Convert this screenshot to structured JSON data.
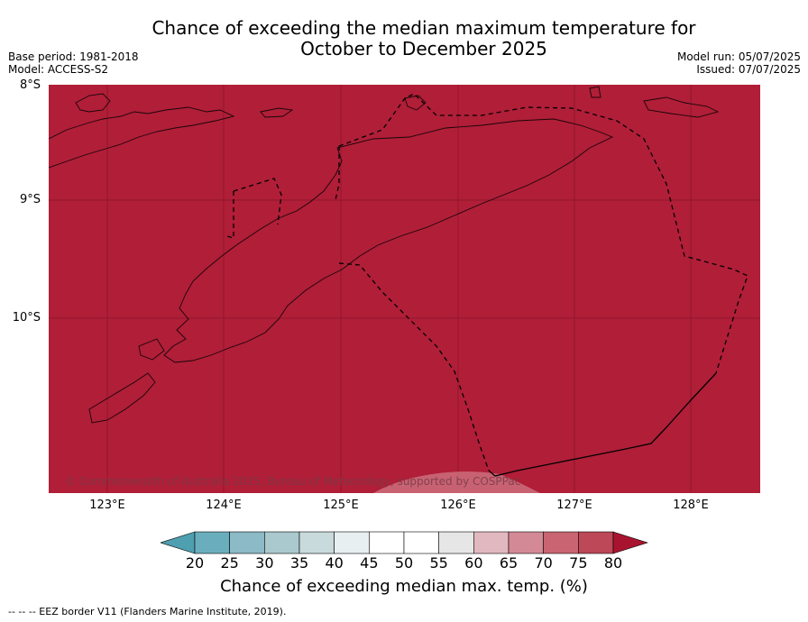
{
  "title_line1": "Chance of exceeding the median maximum temperature for",
  "title_line2": "October to December 2025",
  "meta_left": {
    "base_period": "Base period: 1981-2018",
    "model": "Model: ACCESS-S2"
  },
  "meta_right": {
    "model_run": "Model run: 05/07/2025",
    "issued": "Issued: 07/07/2025"
  },
  "map": {
    "fill_color": "#b01e38",
    "lat_labels": [
      "8°S",
      "9°S",
      "10°S"
    ],
    "lon_labels": [
      "123°E",
      "124°E",
      "125°E",
      "126°E",
      "127°E",
      "128°E"
    ],
    "copyright": "© Commonwealth of Australia 2025, Bureau of Meteorology, supported by COSPPac"
  },
  "colorbar": {
    "ticks": [
      "20",
      "25",
      "30",
      "35",
      "40",
      "45",
      "50",
      "55",
      "60",
      "65",
      "70",
      "75",
      "80"
    ],
    "colors": [
      "#4e9fb0",
      "#6aaebd",
      "#8cbac6",
      "#a9c9ce",
      "#c9dadc",
      "#e8eff1",
      "#ffffff",
      "#ffffff",
      "#e6e6e6",
      "#e2b8c0",
      "#d48a96",
      "#c96473",
      "#bc4858",
      "#a8142f"
    ],
    "label": "Chance of exceeding median max. temp. (%)"
  },
  "footer": "--  --  -- EEZ border V11 (Flanders Marine Institute, 2019)."
}
